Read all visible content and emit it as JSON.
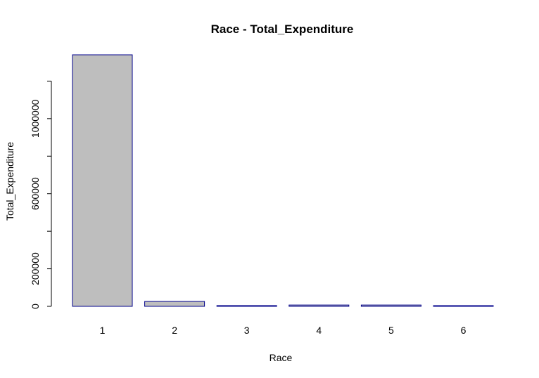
{
  "chart_data": {
    "type": "bar",
    "title": "Race - Total_Expenditure",
    "xlabel": "Race",
    "ylabel": "Total_Expenditure",
    "categories": [
      "1",
      "2",
      "3",
      "4",
      "5",
      "6"
    ],
    "values": [
      1340000,
      26000,
      4000,
      7000,
      7000,
      3000
    ],
    "ylim": [
      0,
      1340000
    ],
    "yticks": [
      0,
      200000,
      600000,
      1000000
    ],
    "ytick_labels": [
      "0",
      "200000",
      "600000",
      "1000000"
    ],
    "grid": false,
    "legend": "none",
    "colors": {
      "bar_fill": "#bebebe",
      "bar_stroke": "#00008b",
      "axis": "#000000"
    }
  }
}
